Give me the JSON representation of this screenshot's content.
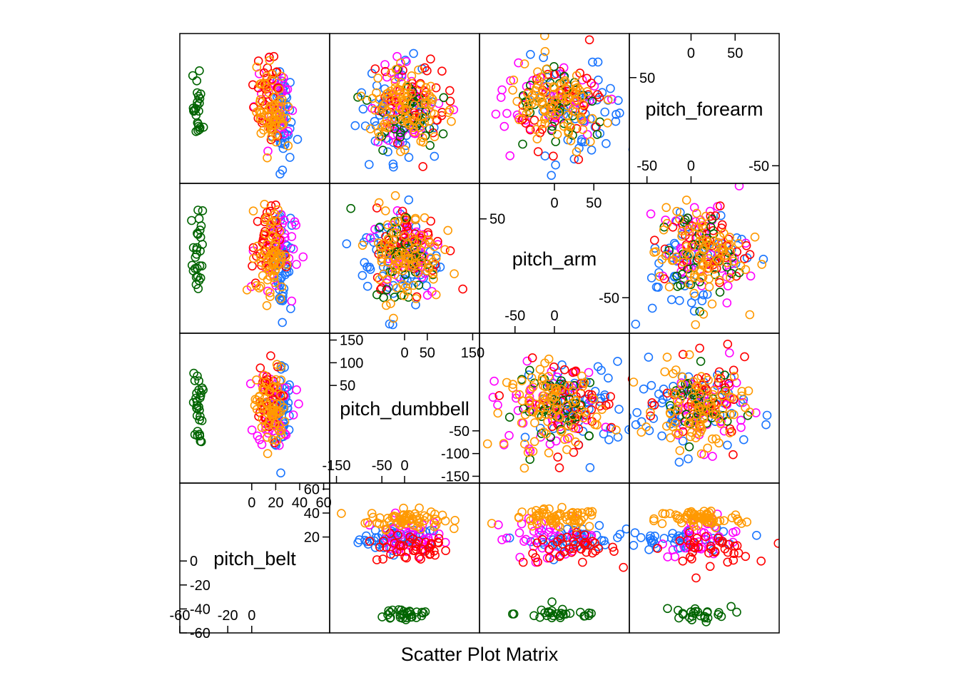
{
  "chart_data": {
    "type": "scatter",
    "title": "Scatter Plot Matrix",
    "grid": false,
    "legend": "none",
    "groups": [
      {
        "color": "#1a75ff"
      },
      {
        "color": "#ff00ff"
      },
      {
        "color": "#ff0000"
      },
      {
        "color": "#006400"
      },
      {
        "color": "#ff9900"
      }
    ],
    "variables": [
      {
        "name": "pitch_belt",
        "range": [
          -60,
          65
        ],
        "ticks_left": [
          {
            "v": -60,
            "t": "-60"
          },
          {
            "v": -40,
            "t": "-40"
          },
          {
            "v": -20,
            "t": "-20"
          },
          {
            "v": 0,
            "t": "0"
          }
        ],
        "ticks_right": [
          {
            "v": 20,
            "t": "20"
          },
          {
            "v": 40,
            "t": "40"
          },
          {
            "v": 60,
            "t": "60"
          }
        ],
        "ticks_bottom": [
          {
            "v": -60,
            "t": "-60"
          },
          {
            "v": -20,
            "t": "-20"
          },
          {
            "v": 0,
            "t": "0"
          }
        ],
        "ticks_top": [
          {
            "v": 0,
            "t": "0"
          },
          {
            "v": 20,
            "t": "20"
          },
          {
            "v": 40,
            "t": "40"
          },
          {
            "v": 60,
            "t": "60"
          }
        ],
        "clusters": [
          {
            "g": 4,
            "c": [
              16,
              35
            ],
            "s": [
              6,
              4
            ],
            "n": 40
          },
          {
            "g": 4,
            "c": [
              -42,
              -40
            ],
            "s": [
              3,
              4
            ],
            "n": 30
          },
          {
            "g": 0,
            "c": [
              25,
              18
            ],
            "s": [
              4,
              5
            ],
            "n": 35
          },
          {
            "g": 2,
            "c": [
              12,
              10
            ],
            "s": [
              6,
              6
            ],
            "n": 35
          },
          {
            "g": 3,
            "c": [
              -45,
              -44
            ],
            "s": [
              2,
              3
            ],
            "n": 20
          },
          {
            "g": 1,
            "c": [
              20,
              20
            ],
            "s": [
              8,
              8
            ],
            "n": 25
          },
          {
            "g": 0,
            "c": [
              -45,
              -45
            ],
            "s": [
              2,
              2
            ],
            "n": 15
          }
        ]
      },
      {
        "name": "pitch_dumbbell",
        "range": [
          -165,
          165
        ],
        "ticks_left": [
          {
            "v": 150,
            "t": "150"
          },
          {
            "v": 100,
            "t": "100"
          },
          {
            "v": 50,
            "t": "50"
          }
        ],
        "ticks_right": [
          {
            "v": -50,
            "t": "-50"
          },
          {
            "v": -100,
            "t": "-100"
          },
          {
            "v": -150,
            "t": "-150"
          }
        ],
        "ticks_bottom": [
          {
            "v": -150,
            "t": "-150"
          },
          {
            "v": -50,
            "t": "-50"
          },
          {
            "v": 0,
            "t": "0"
          }
        ],
        "ticks_top": [
          {
            "v": 0,
            "t": "0"
          },
          {
            "v": 50,
            "t": "50"
          },
          {
            "v": 150,
            "t": "150"
          }
        ],
        "clusters": [
          {
            "g": 0,
            "c": [
              -10,
              0
            ],
            "s": [
              45,
              50
            ],
            "n": 60
          },
          {
            "g": 1,
            "c": [
              5,
              5
            ],
            "s": [
              40,
              45
            ],
            "n": 50
          },
          {
            "g": 2,
            "c": [
              15,
              10
            ],
            "s": [
              40,
              45
            ],
            "n": 50
          },
          {
            "g": 3,
            "c": [
              0,
              0
            ],
            "s": [
              35,
              40
            ],
            "n": 40
          },
          {
            "g": 4,
            "c": [
              0,
              0
            ],
            "s": [
              40,
              45
            ],
            "n": 90
          }
        ]
      },
      {
        "name": "pitch_arm",
        "range": [
          -95,
          95
        ],
        "ticks_left": [
          {
            "v": 50,
            "t": "50"
          }
        ],
        "ticks_right": [
          {
            "v": -50,
            "t": "-50"
          }
        ],
        "ticks_bottom": [
          {
            "v": -50,
            "t": "-50"
          },
          {
            "v": 0,
            "t": "0"
          }
        ],
        "ticks_top": [
          {
            "v": 0,
            "t": "0"
          },
          {
            "v": 50,
            "t": "50"
          }
        ],
        "clusters": [
          {
            "g": 0,
            "c": [
              30,
              0
            ],
            "s": [
              30,
              35
            ],
            "n": 60
          },
          {
            "g": 1,
            "c": [
              -10,
              10
            ],
            "s": [
              35,
              30
            ],
            "n": 45
          },
          {
            "g": 2,
            "c": [
              20,
              15
            ],
            "s": [
              30,
              25
            ],
            "n": 45
          },
          {
            "g": 3,
            "c": [
              10,
              0
            ],
            "s": [
              30,
              30
            ],
            "n": 35
          },
          {
            "g": 4,
            "c": [
              0,
              5
            ],
            "s": [
              30,
              30
            ],
            "n": 90
          }
        ]
      },
      {
        "name": "pitch_forearm",
        "range": [
          -70,
          100
        ],
        "ticks_left": [
          {
            "v": 50,
            "t": "50"
          }
        ],
        "ticks_right": [
          {
            "v": -50,
            "t": "-50"
          }
        ],
        "ticks_bottom": [
          {
            "v": -50,
            "t": "-50"
          },
          {
            "v": 0,
            "t": "0"
          }
        ],
        "ticks_top": [
          {
            "v": 0,
            "t": "0"
          },
          {
            "v": 50,
            "t": "50"
          }
        ],
        "clusters": [
          {
            "g": 0,
            "c": [
              -10,
              10
            ],
            "s": [
              35,
              30
            ],
            "n": 55
          },
          {
            "g": 1,
            "c": [
              15,
              20
            ],
            "s": [
              25,
              25
            ],
            "n": 40
          },
          {
            "g": 2,
            "c": [
              20,
              25
            ],
            "s": [
              25,
              25
            ],
            "n": 40
          },
          {
            "g": 3,
            "c": [
              5,
              10
            ],
            "s": [
              20,
              20
            ],
            "n": 30
          },
          {
            "g": 4,
            "c": [
              10,
              15
            ],
            "s": [
              25,
              25
            ],
            "n": 90
          }
        ]
      }
    ]
  }
}
